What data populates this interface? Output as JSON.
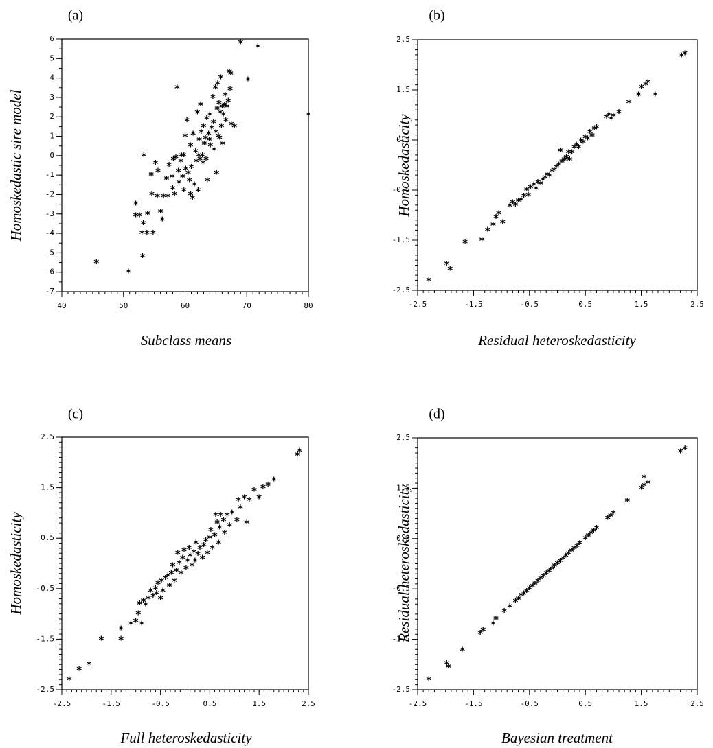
{
  "chart_data": [
    {
      "type": "scatter",
      "panel_label": "(a)",
      "xlabel": "Subclass means",
      "ylabel": "Homoskedastic sire model",
      "xlim": [
        40,
        80
      ],
      "ylim": [
        -7,
        6
      ],
      "xticks": [
        40,
        50,
        60,
        70,
        80
      ],
      "yticks": [
        6,
        5,
        4,
        3,
        2,
        1,
        0,
        -1,
        -2,
        -3,
        -4,
        -5,
        -6,
        -7
      ],
      "x_minor_step": 1,
      "y_minor_step": 0.5,
      "grid": false,
      "points": [
        [
          45.6,
          -5.5
        ],
        [
          50.8,
          -6.0
        ],
        [
          52.0,
          -2.5
        ],
        [
          52.0,
          -3.1
        ],
        [
          52.6,
          -3.1
        ],
        [
          53.0,
          -4.0
        ],
        [
          53.1,
          -5.2
        ],
        [
          53.2,
          -3.5
        ],
        [
          53.3,
          0.0
        ],
        [
          53.8,
          -4.0
        ],
        [
          53.9,
          -3.0
        ],
        [
          54.5,
          -1.0
        ],
        [
          54.6,
          -2.0
        ],
        [
          54.8,
          -4.0
        ],
        [
          55.2,
          -0.4
        ],
        [
          55.6,
          -0.8
        ],
        [
          55.5,
          -2.1
        ],
        [
          56.0,
          -2.9
        ],
        [
          56.3,
          -3.3
        ],
        [
          56.5,
          -2.1
        ],
        [
          57.0,
          -1.2
        ],
        [
          57.2,
          -2.1
        ],
        [
          57.4,
          -0.5
        ],
        [
          57.9,
          -1.1
        ],
        [
          58.0,
          -1.7
        ],
        [
          58.1,
          -0.2
        ],
        [
          58.3,
          -2.0
        ],
        [
          58.5,
          -0.1
        ],
        [
          58.7,
          3.5
        ],
        [
          58.9,
          -0.8
        ],
        [
          59.0,
          -1.4
        ],
        [
          59.3,
          -0.3
        ],
        [
          59.4,
          0.0
        ],
        [
          59.6,
          -1.1
        ],
        [
          59.8,
          -1.8
        ],
        [
          59.8,
          0.0
        ],
        [
          60.0,
          1.0
        ],
        [
          60.1,
          -0.7
        ],
        [
          60.3,
          1.8
        ],
        [
          60.5,
          -0.9
        ],
        [
          60.7,
          -1.3
        ],
        [
          60.9,
          -2.0
        ],
        [
          60.9,
          0.5
        ],
        [
          61.0,
          -0.6
        ],
        [
          61.2,
          -2.2
        ],
        [
          61.3,
          1.1
        ],
        [
          61.5,
          -1.5
        ],
        [
          61.7,
          0.2
        ],
        [
          61.8,
          -0.3
        ],
        [
          62.0,
          2.2
        ],
        [
          62.1,
          -1.8
        ],
        [
          62.2,
          0.0
        ],
        [
          62.3,
          0.8
        ],
        [
          62.4,
          -0.2
        ],
        [
          62.5,
          2.6
        ],
        [
          62.6,
          1.2
        ],
        [
          62.8,
          0.0
        ],
        [
          62.9,
          -0.4
        ],
        [
          63.0,
          1.5
        ],
        [
          63.1,
          0.6
        ],
        [
          63.3,
          0.9
        ],
        [
          63.4,
          -0.2
        ],
        [
          63.5,
          1.9
        ],
        [
          63.6,
          -1.3
        ],
        [
          63.8,
          1.1
        ],
        [
          63.9,
          0.8
        ],
        [
          64.0,
          2.1
        ],
        [
          64.1,
          0.5
        ],
        [
          64.3,
          1.4
        ],
        [
          64.5,
          3.0
        ],
        [
          64.6,
          1.7
        ],
        [
          64.7,
          0.3
        ],
        [
          64.9,
          3.5
        ],
        [
          65.0,
          1.2
        ],
        [
          65.1,
          -0.9
        ],
        [
          65.2,
          2.4
        ],
        [
          65.3,
          3.7
        ],
        [
          65.4,
          1.0
        ],
        [
          65.5,
          2.7
        ],
        [
          65.6,
          0.9
        ],
        [
          65.7,
          2.2
        ],
        [
          65.8,
          4.0
        ],
        [
          65.9,
          1.5
        ],
        [
          66.0,
          2.5
        ],
        [
          66.1,
          0.6
        ],
        [
          66.2,
          2.1
        ],
        [
          66.4,
          2.6
        ],
        [
          66.5,
          3.1
        ],
        [
          66.6,
          1.8
        ],
        [
          66.8,
          2.5
        ],
        [
          67.0,
          2.8
        ],
        [
          67.2,
          4.3
        ],
        [
          67.3,
          3.4
        ],
        [
          67.4,
          4.2
        ],
        [
          67.5,
          1.6
        ],
        [
          68.0,
          1.5
        ],
        [
          69.0,
          5.8
        ],
        [
          70.2,
          3.9
        ],
        [
          71.8,
          5.6
        ],
        [
          80.0,
          2.1
        ]
      ]
    },
    {
      "type": "scatter",
      "panel_label": "(b)",
      "xlabel": "Residual heteroskedasticity",
      "ylabel": "Homoskedasticity",
      "xlim": [
        -2.5,
        2.5
      ],
      "ylim": [
        -2.5,
        2.5
      ],
      "xticks": [
        -2.5,
        -1.5,
        -0.5,
        0.5,
        1.5,
        2.5
      ],
      "yticks": [
        2.5,
        1.5,
        0.5,
        -0.5,
        -1.5,
        -2.5
      ],
      "x_minor_step": 0.1,
      "y_minor_step": 0.1,
      "grid": false,
      "points": [
        [
          -2.3,
          -2.3
        ],
        [
          -1.98,
          -1.98
        ],
        [
          -1.92,
          -2.08
        ],
        [
          -1.65,
          -1.55
        ],
        [
          -1.35,
          -1.5
        ],
        [
          -1.25,
          -1.3
        ],
        [
          -1.15,
          -1.2
        ],
        [
          -1.1,
          -1.05
        ],
        [
          -1.05,
          -0.97
        ],
        [
          -0.98,
          -1.15
        ],
        [
          -0.85,
          -0.82
        ],
        [
          -0.8,
          -0.75
        ],
        [
          -0.75,
          -0.8
        ],
        [
          -0.7,
          -0.72
        ],
        [
          -0.65,
          -0.7
        ],
        [
          -0.6,
          -0.62
        ],
        [
          -0.55,
          -0.5
        ],
        [
          -0.52,
          -0.6
        ],
        [
          -0.48,
          -0.45
        ],
        [
          -0.42,
          -0.4
        ],
        [
          -0.38,
          -0.48
        ],
        [
          -0.35,
          -0.35
        ],
        [
          -0.3,
          -0.38
        ],
        [
          -0.26,
          -0.3
        ],
        [
          -0.22,
          -0.25
        ],
        [
          -0.18,
          -0.2
        ],
        [
          -0.14,
          -0.22
        ],
        [
          -0.1,
          -0.12
        ],
        [
          -0.06,
          -0.1
        ],
        [
          -0.02,
          -0.05
        ],
        [
          0.02,
          0.0
        ],
        [
          0.05,
          0.28
        ],
        [
          0.08,
          0.06
        ],
        [
          0.12,
          0.1
        ],
        [
          0.16,
          0.15
        ],
        [
          0.2,
          0.25
        ],
        [
          0.22,
          0.1
        ],
        [
          0.26,
          0.25
        ],
        [
          0.3,
          0.35
        ],
        [
          0.34,
          0.4
        ],
        [
          0.38,
          0.35
        ],
        [
          0.42,
          0.48
        ],
        [
          0.46,
          0.45
        ],
        [
          0.5,
          0.55
        ],
        [
          0.54,
          0.52
        ],
        [
          0.58,
          0.65
        ],
        [
          0.62,
          0.58
        ],
        [
          0.66,
          0.72
        ],
        [
          0.7,
          0.75
        ],
        [
          0.88,
          0.95
        ],
        [
          0.92,
          1.0
        ],
        [
          0.96,
          0.92
        ],
        [
          1.0,
          0.98
        ],
        [
          1.1,
          1.05
        ],
        [
          1.28,
          1.25
        ],
        [
          1.45,
          1.4
        ],
        [
          1.5,
          1.55
        ],
        [
          1.58,
          1.6
        ],
        [
          1.62,
          1.65
        ],
        [
          1.75,
          1.4
        ],
        [
          2.22,
          2.18
        ],
        [
          2.28,
          2.22
        ]
      ]
    },
    {
      "type": "scatter",
      "panel_label": "(c)",
      "xlabel": "Full heteroskedasticity",
      "ylabel": "Homoskedasticity",
      "xlim": [
        -2.5,
        2.5
      ],
      "ylim": [
        -2.5,
        2.5
      ],
      "xticks": [
        -2.5,
        -1.5,
        -0.5,
        0.5,
        1.5,
        2.5
      ],
      "yticks": [
        2.5,
        1.5,
        0.5,
        -0.5,
        -1.5,
        -2.5
      ],
      "x_minor_step": 0.1,
      "y_minor_step": 0.1,
      "grid": false,
      "points": [
        [
          -2.35,
          -2.3
        ],
        [
          -2.15,
          -2.1
        ],
        [
          -1.95,
          -2.0
        ],
        [
          -1.7,
          -1.5
        ],
        [
          -1.3,
          -1.3
        ],
        [
          -1.3,
          -1.5
        ],
        [
          -1.1,
          -1.2
        ],
        [
          -1.0,
          -1.15
        ],
        [
          -0.95,
          -1.0
        ],
        [
          -0.92,
          -0.8
        ],
        [
          -0.88,
          -1.2
        ],
        [
          -0.85,
          -0.75
        ],
        [
          -0.8,
          -0.82
        ],
        [
          -0.75,
          -0.7
        ],
        [
          -0.7,
          -0.55
        ],
        [
          -0.65,
          -0.65
        ],
        [
          -0.6,
          -0.5
        ],
        [
          -0.58,
          -0.6
        ],
        [
          -0.55,
          -0.4
        ],
        [
          -0.5,
          -0.7
        ],
        [
          -0.48,
          -0.35
        ],
        [
          -0.45,
          -0.55
        ],
        [
          -0.4,
          -0.3
        ],
        [
          -0.35,
          -0.25
        ],
        [
          -0.32,
          -0.45
        ],
        [
          -0.28,
          -0.2
        ],
        [
          -0.25,
          -0.05
        ],
        [
          -0.22,
          -0.35
        ],
        [
          -0.18,
          -0.15
        ],
        [
          -0.15,
          0.2
        ],
        [
          -0.12,
          0.0
        ],
        [
          -0.08,
          -0.2
        ],
        [
          -0.05,
          0.1
        ],
        [
          -0.02,
          0.25
        ],
        [
          0.02,
          -0.1
        ],
        [
          0.05,
          0.05
        ],
        [
          0.08,
          0.3
        ],
        [
          0.1,
          0.15
        ],
        [
          0.14,
          -0.05
        ],
        [
          0.18,
          0.22
        ],
        [
          0.2,
          0.05
        ],
        [
          0.22,
          0.4
        ],
        [
          0.26,
          0.18
        ],
        [
          0.3,
          0.3
        ],
        [
          0.35,
          0.1
        ],
        [
          0.38,
          0.35
        ],
        [
          0.42,
          0.45
        ],
        [
          0.45,
          0.2
        ],
        [
          0.5,
          0.5
        ],
        [
          0.52,
          0.65
        ],
        [
          0.55,
          0.3
        ],
        [
          0.6,
          0.55
        ],
        [
          0.62,
          0.95
        ],
        [
          0.65,
          0.8
        ],
        [
          0.68,
          0.4
        ],
        [
          0.7,
          0.7
        ],
        [
          0.72,
          0.95
        ],
        [
          0.78,
          0.85
        ],
        [
          0.8,
          0.6
        ],
        [
          0.85,
          0.95
        ],
        [
          0.9,
          0.75
        ],
        [
          0.95,
          1.0
        ],
        [
          1.05,
          0.85
        ],
        [
          1.08,
          1.25
        ],
        [
          1.12,
          1.1
        ],
        [
          1.2,
          1.3
        ],
        [
          1.25,
          0.8
        ],
        [
          1.3,
          1.25
        ],
        [
          1.4,
          1.45
        ],
        [
          1.5,
          1.3
        ],
        [
          1.58,
          1.5
        ],
        [
          1.68,
          1.55
        ],
        [
          1.8,
          1.65
        ],
        [
          2.28,
          2.15
        ],
        [
          2.32,
          2.22
        ]
      ]
    },
    {
      "type": "scatter",
      "panel_label": "(d)",
      "xlabel": "Bayesian treatment",
      "ylabel": "Residual heteroskedasticity",
      "xlim": [
        -2.5,
        2.5
      ],
      "ylim": [
        -2.5,
        2.5
      ],
      "xticks": [
        -2.5,
        -1.5,
        -0.5,
        0.5,
        1.5,
        2.5
      ],
      "yticks": [
        2.5,
        1.5,
        0.5,
        -0.5,
        -1.5,
        -2.5
      ],
      "x_minor_step": 0.1,
      "y_minor_step": 0.1,
      "grid": false,
      "points": [
        [
          -2.3,
          -2.3
        ],
        [
          -1.98,
          -1.98
        ],
        [
          -1.95,
          -2.05
        ],
        [
          -1.7,
          -1.72
        ],
        [
          -1.38,
          -1.38
        ],
        [
          -1.33,
          -1.32
        ],
        [
          -1.15,
          -1.2
        ],
        [
          -1.1,
          -1.1
        ],
        [
          -0.95,
          -0.95
        ],
        [
          -0.85,
          -0.85
        ],
        [
          -0.75,
          -0.75
        ],
        [
          -0.7,
          -0.7
        ],
        [
          -0.65,
          -0.63
        ],
        [
          -0.6,
          -0.6
        ],
        [
          -0.55,
          -0.55
        ],
        [
          -0.5,
          -0.5
        ],
        [
          -0.45,
          -0.45
        ],
        [
          -0.4,
          -0.4
        ],
        [
          -0.35,
          -0.35
        ],
        [
          -0.3,
          -0.3
        ],
        [
          -0.25,
          -0.25
        ],
        [
          -0.2,
          -0.2
        ],
        [
          -0.15,
          -0.15
        ],
        [
          -0.1,
          -0.1
        ],
        [
          -0.05,
          -0.05
        ],
        [
          0.0,
          0.0
        ],
        [
          0.05,
          0.05
        ],
        [
          0.1,
          0.1
        ],
        [
          0.15,
          0.15
        ],
        [
          0.2,
          0.2
        ],
        [
          0.25,
          0.25
        ],
        [
          0.3,
          0.3
        ],
        [
          0.35,
          0.35
        ],
        [
          0.4,
          0.4
        ],
        [
          0.5,
          0.5
        ],
        [
          0.55,
          0.55
        ],
        [
          0.6,
          0.6
        ],
        [
          0.65,
          0.65
        ],
        [
          0.7,
          0.7
        ],
        [
          0.9,
          0.9
        ],
        [
          0.95,
          0.95
        ],
        [
          1.0,
          1.0
        ],
        [
          1.25,
          1.25
        ],
        [
          1.5,
          1.5
        ],
        [
          1.55,
          1.55
        ],
        [
          1.55,
          1.72
        ],
        [
          1.62,
          1.6
        ],
        [
          2.2,
          2.22
        ],
        [
          2.28,
          2.28
        ]
      ]
    }
  ]
}
